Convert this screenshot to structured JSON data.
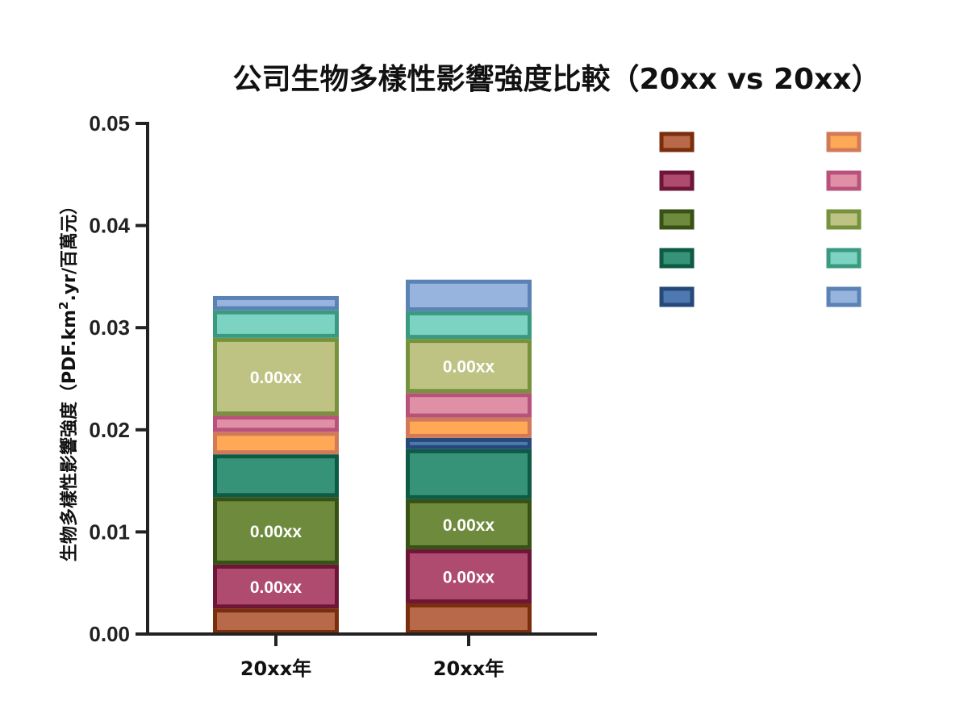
{
  "chart_data": {
    "type": "bar",
    "stacked": true,
    "title": "公司生物多樣性影響強度比較（20xx vs 20xx）",
    "ylabel_main": "生物多樣性影響強度（PDF.km",
    "ylabel_sup": "2",
    "ylabel_tail": ".yr/百萬元）",
    "xlabel": "",
    "ylim": [
      0,
      0.05
    ],
    "yticks": [
      "0.00",
      "0.01",
      "0.02",
      "0.03",
      "0.04",
      "0.05"
    ],
    "ytick_values": [
      0,
      0.01,
      0.02,
      0.03,
      0.04,
      0.05
    ],
    "categories": [
      "20xx年",
      "20xx年"
    ],
    "legend_position": "top-right",
    "legend_labels_visible": false,
    "series": [
      {
        "values": [
          0.0025,
          0.003
        ],
        "fill": "#B8694A",
        "stroke": "#7A2E0C"
      },
      {
        "values": [
          0.0043,
          0.0053
        ],
        "fill": "#AE4B6F",
        "stroke": "#6E1638",
        "data_labels": [
          "0.00xx",
          "0.00xx"
        ]
      },
      {
        "values": [
          0.0066,
          0.0049
        ],
        "fill": "#6E8B3D",
        "stroke": "#375214",
        "data_labels": [
          "0.00xx",
          "0.00xx"
        ]
      },
      {
        "values": [
          0.0042,
          0.0049
        ],
        "fill": "#369378",
        "stroke": "#0D5A45"
      },
      {
        "values": [
          0.0,
          0.0011
        ],
        "fill": "#4E78B0",
        "stroke": "#26497A"
      },
      {
        "values": [
          0.0022,
          0.002
        ],
        "fill": "#FFA856",
        "stroke": "#D07A5A"
      },
      {
        "values": [
          0.0016,
          0.0024
        ],
        "fill": "#E090A6",
        "stroke": "#B8527A"
      },
      {
        "values": [
          0.0076,
          0.0053
        ],
        "fill": "#BEC384",
        "stroke": "#76923D",
        "data_labels": [
          "0.00xx",
          "0.00xx"
        ]
      },
      {
        "values": [
          0.0027,
          0.0027
        ],
        "fill": "#7DD3C1",
        "stroke": "#3A9A80"
      },
      {
        "values": [
          0.0014,
          0.0031
        ],
        "fill": "#97B4DE",
        "stroke": "#5A82B4"
      }
    ],
    "legend_order": [
      0,
      5,
      1,
      6,
      2,
      7,
      3,
      8,
      4,
      9
    ]
  }
}
